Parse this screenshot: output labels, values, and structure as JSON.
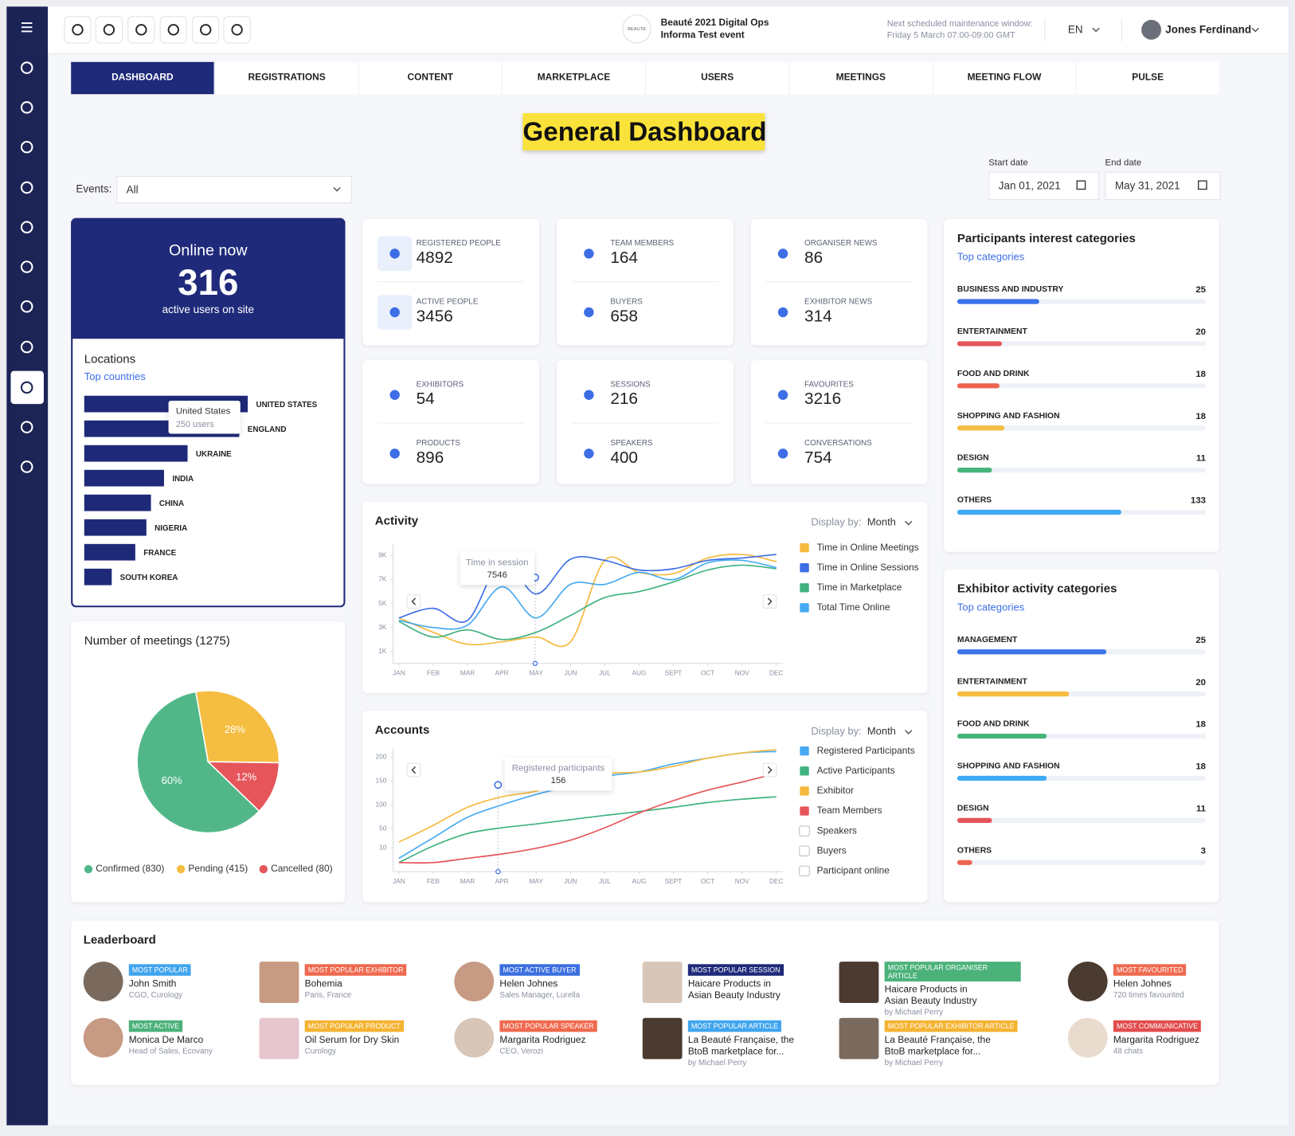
{
  "header": {
    "logo": "BEAUTÉ",
    "event_name": "Beauté 2021 Digital Ops",
    "event_sub": "Informa Test event",
    "maintenance_label": "Next scheduled maintenance window:",
    "maintenance_time": "Friday 5 March 07:00-09:00 GMT",
    "language": "EN",
    "user": "Jones Ferdinand"
  },
  "tabs": [
    "DASHBOARD",
    "REGISTRATIONS",
    "CONTENT",
    "MARKETPLACE",
    "USERS",
    "MEETINGS",
    "MEETING FLOW",
    "PULSE"
  ],
  "title": "General Dashboard",
  "filters": {
    "events_label": "Events:",
    "events_value": "All",
    "start_label": "Start date",
    "start_value": "Jan 01, 2021",
    "end_label": "End date",
    "end_value": "May 31, 2021"
  },
  "online": {
    "title": "Online now",
    "value": 316,
    "caption": "active users on site"
  },
  "stats": [
    [
      {
        "label": "REGISTERED PEOPLE",
        "value": 4892
      },
      {
        "label": "ACTIVE PEOPLE",
        "value": 3456
      }
    ],
    [
      {
        "label": "TEAM MEMBERS",
        "value": 164
      },
      {
        "label": "BUYERS",
        "value": 658
      }
    ],
    [
      {
        "label": "ORGANISER NEWS",
        "value": 86
      },
      {
        "label": "EXHIBITOR NEWS",
        "value": 314
      }
    ],
    [
      {
        "label": "EXHIBITORS",
        "value": 54
      },
      {
        "label": "PRODUCTS",
        "value": 896
      }
    ],
    [
      {
        "label": "SESSIONS",
        "value": 216
      },
      {
        "label": "SPEAKERS",
        "value": 400
      }
    ],
    [
      {
        "label": "FAVOURITES",
        "value": 3216
      },
      {
        "label": "CONVERSATIONS",
        "value": 754
      }
    ]
  ],
  "interest": {
    "title": "Participants interest categories",
    "subtitle": "Top categories",
    "items": [
      {
        "name": "BUSINESS AND INDUSTRY",
        "value": 25,
        "fill": 33,
        "color": "#3b73e8"
      },
      {
        "name": "ENTERTAINMENT",
        "value": 20,
        "fill": 18,
        "color": "#e5555a"
      },
      {
        "name": "FOOD AND DRINK",
        "value": 18,
        "fill": 17,
        "color": "#ec6451"
      },
      {
        "name": "SHOPPING AND FASHION",
        "value": 18,
        "fill": 19,
        "color": "#f5bd41"
      },
      {
        "name": "DESIGN",
        "value": 11,
        "fill": 14,
        "color": "#45b57a"
      },
      {
        "name": "OTHERS",
        "value": 133,
        "fill": 66,
        "color": "#3fa9f5"
      }
    ]
  },
  "exhibitor": {
    "title": "Exhibitor activity categories",
    "subtitle": "Top categories",
    "items": [
      {
        "name": "MANAGEMENT",
        "value": 25,
        "fill": 60,
        "color": "#3b73e8"
      },
      {
        "name": "ENTERTAINMENT",
        "value": 20,
        "fill": 45,
        "color": "#f5bd41"
      },
      {
        "name": "FOOD AND DRINK",
        "value": 18,
        "fill": 36,
        "color": "#45b57a"
      },
      {
        "name": "SHOPPING AND FASHION",
        "value": 18,
        "fill": 36,
        "color": "#3fa9f5"
      },
      {
        "name": "DESIGN",
        "value": 11,
        "fill": 14,
        "color": "#e5555a"
      },
      {
        "name": "OTHERS",
        "value": 3,
        "fill": 6,
        "color": "#ec6451"
      }
    ]
  },
  "leaderboard": {
    "title": "Leaderboard",
    "items": [
      {
        "badge": "MOST POPULAR",
        "color": "#41a5ee",
        "name": "John Smith",
        "detail": "CGO, Curology"
      },
      {
        "badge": "MOST POPULAR EXHIBITOR",
        "color": "#ef6a4f",
        "name": "Bohemia",
        "detail": "Paris, France"
      },
      {
        "badge": "MOST ACTIVE BUYER",
        "color": "#3b6fe0",
        "name": "Helen Johnes",
        "detail": "Sales Manager, Lurella"
      },
      {
        "badge": "MOST POPULAR SESSION",
        "color": "#1f2a7a",
        "name": "Haicare Products in Asian Beauty Industry",
        "detail": ""
      },
      {
        "badge": "MOST POPULAR ORGANISER  ARTICLE",
        "color": "#4bb27a",
        "name": "Haicare Products in Asian Beauty Industry",
        "detail": "by Michael Perry"
      },
      {
        "badge": "MOST FAVOURITED",
        "color": "#ef6a4f",
        "name": "Helen Johnes",
        "detail": "720 times favourited"
      },
      {
        "badge": "MOST ACTIVE",
        "color": "#4bb27a",
        "name": "Monica De Marco",
        "detail": "Head of Sales, Ecovany"
      },
      {
        "badge": "MOST POPULAR PRODUCT",
        "color": "#f5b331",
        "name": "Oil Serum for Dry Skin",
        "detail": "Curology"
      },
      {
        "badge": "MOST POPULAR SPEAKER",
        "color": "#ef6a4f",
        "name": "Margarita Rodriguez",
        "detail": "CEO, Verozi"
      },
      {
        "badge": "MOST POPULAR ARTICLE",
        "color": "#41a5ee",
        "name": "La Beauté Française, the BtoB marketplace for...",
        "detail": "by Michael Perry"
      },
      {
        "badge": "MOST POPULAR EXHIBITOR ARTICLE",
        "color": "#f5b331",
        "name": "La Beauté Française, the BtoB marketplace for...",
        "detail": "by Michael Perry"
      },
      {
        "badge": "MOST COMMUNICATIVE",
        "color": "#e24c4c",
        "name": "Margarita Rodriguez",
        "detail": "48 chats"
      }
    ]
  },
  "chart_data": [
    {
      "type": "bar",
      "orientation": "horizontal",
      "title": "Locations",
      "subtitle": "Top countries",
      "categories": [
        "UNITED STATES",
        "ENGLAND",
        "UKRAINE",
        "INDIA",
        "CHINA",
        "NIGERIA",
        "FRANCE",
        "SOUTH KOREA"
      ],
      "values": [
        250,
        237,
        158,
        122,
        102,
        95,
        78,
        42
      ],
      "color": "#1e2a78",
      "tooltip": {
        "title": "United States",
        "label": "250 users"
      }
    },
    {
      "type": "pie",
      "title": "Number of meetings (1275)",
      "categories": [
        "Confirmed (830)",
        "Pending (415)",
        "Cancelled (80)"
      ],
      "values": [
        60,
        28,
        12
      ],
      "value_labels": [
        "60%",
        "28%",
        "12%"
      ],
      "colors": [
        "#52b788",
        "#f5bd41",
        "#e5555a"
      ]
    },
    {
      "type": "line",
      "title": "Activity",
      "display_label": "Display by:",
      "display_value": "Month",
      "categories": [
        "JAN",
        "FEB",
        "MAR",
        "APR",
        "MAY",
        "JUN",
        "JUL",
        "AUG",
        "SEPT",
        "OCT",
        "NOV",
        "DEC"
      ],
      "ylim": [
        0,
        10000
      ],
      "yticks": [
        {
          "value": 1000,
          "label": "1K"
        },
        {
          "value": 3000,
          "label": "3K"
        },
        {
          "value": 5000,
          "label": "5K"
        },
        {
          "value": 7000,
          "label": "7K"
        },
        {
          "value": 9000,
          "label": "9K"
        }
      ],
      "series": [
        {
          "name": "Time in Online Meetings",
          "color": "#f6b93b",
          "values": [
            3800,
            2600,
            1600,
            1800,
            2200,
            1800,
            8600,
            7600,
            7500,
            8800,
            9100,
            8500
          ]
        },
        {
          "name": "Time in Online Sessions",
          "color": "#3d6ee6",
          "values": [
            3800,
            4600,
            3600,
            8600,
            5800,
            8700,
            8600,
            7800,
            7900,
            8600,
            8800,
            9100
          ]
        },
        {
          "name": "Time in Marketplace",
          "color": "#3fb27f",
          "values": [
            3500,
            2200,
            2800,
            2000,
            2600,
            4000,
            5500,
            6000,
            6800,
            7800,
            8200,
            7900
          ]
        },
        {
          "name": "Total Time Online",
          "color": "#45aaf2",
          "values": [
            3600,
            3000,
            3200,
            6400,
            3800,
            6600,
            6600,
            7600,
            7000,
            8400,
            8600,
            8000
          ]
        }
      ],
      "tooltip": {
        "title": "Time in session",
        "value": 7546
      }
    },
    {
      "type": "line",
      "title": "Accounts",
      "display_label": "Display by:",
      "display_value": "Month",
      "categories": [
        "JAN",
        "FEB",
        "MAR",
        "APR",
        "MAY",
        "JUN",
        "JUL",
        "AUG",
        "SEPT",
        "OCT",
        "NOV",
        "DEC"
      ],
      "ylim": [
        -40,
        220
      ],
      "yticks": [
        10,
        50,
        100,
        150,
        200
      ],
      "series": [
        {
          "name": "Registered Participants",
          "color": "#45aaf2",
          "values": [
            -12,
            31,
            74,
            100,
            122,
            140,
            160,
            169,
            186,
            198,
            209,
            212
          ]
        },
        {
          "name": "Active Participants",
          "color": "#3fb27f",
          "values": [
            -21,
            14,
            40,
            52,
            60,
            69,
            78,
            86,
            95,
            105,
            112,
            117
          ]
        },
        {
          "name": "Exhibitor",
          "color": "#f6b93b",
          "values": [
            22,
            57,
            95,
            117,
            129,
            152,
            166,
            169,
            181,
            198,
            209,
            216
          ]
        },
        {
          "name": "Team Members",
          "color": "#e5555a",
          "values": [
            -21,
            -21,
            -12,
            -3,
            9,
            26,
            52,
            83,
            109,
            131,
            148,
            166
          ]
        }
      ],
      "legend_extra": [
        "Speakers",
        "Buyers",
        "Participant online"
      ],
      "tooltip": {
        "title": "Registered participants",
        "value": 156
      }
    }
  ]
}
